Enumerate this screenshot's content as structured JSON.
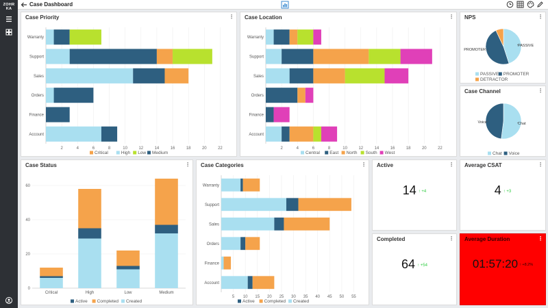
{
  "app": {
    "logo_line1": "ZOHR",
    "logo_line2": "KA",
    "title": "Case Dashboard"
  },
  "colors": {
    "critical": "#f5a34b",
    "high": "#a9dff0",
    "low": "#b8e12e",
    "medium": "#2e5f80",
    "central": "#a9dff0",
    "east": "#2e5f80",
    "north": "#f5a34b",
    "south": "#b8e12e",
    "west": "#e040b8",
    "active": "#2e5f80",
    "completed": "#f5a34b",
    "created": "#a9dff0",
    "passive": "#a9dff0",
    "promoter": "#2e5f80",
    "detractor": "#f5a34b",
    "chat": "#a9dff0",
    "voice": "#2e5f80",
    "alert": "#ff0000",
    "delta": "#2ecc40"
  },
  "cards": {
    "priority": {
      "title": "Case Priority"
    },
    "location": {
      "title": "Case Location"
    },
    "nps": {
      "title": "NPS"
    },
    "channel": {
      "title": "Case Channel"
    },
    "status": {
      "title": "Case Status"
    },
    "categories": {
      "title": "Case Categories"
    },
    "active": {
      "title": "Active",
      "value": "14",
      "delta": "+4"
    },
    "csat": {
      "title": "Average CSAT",
      "value": "4",
      "delta": "+3"
    },
    "completed": {
      "title": "Completed",
      "value": "64",
      "delta": "+54"
    },
    "duration": {
      "title": "Average Duration",
      "value": "01:57:20",
      "delta": "+8.2%"
    }
  },
  "chart_data": [
    {
      "id": "priority",
      "type": "bar",
      "orientation": "horizontal",
      "stacked": true,
      "categories": [
        "Warranty",
        "Support",
        "Sales",
        "Orders",
        "Finance",
        "Account"
      ],
      "series": [
        {
          "name": "High",
          "key": "high",
          "values": [
            1,
            3,
            11,
            1,
            0,
            7
          ]
        },
        {
          "name": "Medium",
          "key": "medium",
          "values": [
            2,
            11,
            4,
            5,
            3,
            2
          ]
        },
        {
          "name": "Critical",
          "key": "critical",
          "values": [
            0,
            2,
            3,
            0,
            0,
            0
          ]
        },
        {
          "name": "Low",
          "key": "low",
          "values": [
            4,
            5,
            0,
            0,
            0,
            0
          ]
        }
      ],
      "legend": [
        "Critical",
        "High",
        "Low",
        "Medium"
      ],
      "legend_keys": [
        "critical",
        "high",
        "low",
        "medium"
      ],
      "xticks": [
        2,
        4,
        6,
        8,
        10,
        12,
        14,
        16,
        18,
        20,
        22
      ],
      "xlim": [
        0,
        23
      ]
    },
    {
      "id": "location",
      "type": "bar",
      "orientation": "horizontal",
      "stacked": true,
      "categories": [
        "Warranty",
        "Support",
        "Sales",
        "Orders",
        "Finance",
        "Account"
      ],
      "series": [
        {
          "name": "Central",
          "key": "central",
          "values": [
            1,
            2,
            3,
            0,
            0,
            2
          ]
        },
        {
          "name": "East",
          "key": "east",
          "values": [
            2,
            4,
            3,
            4,
            1,
            1
          ]
        },
        {
          "name": "North",
          "key": "north",
          "values": [
            1,
            7,
            4,
            1,
            0,
            3
          ]
        },
        {
          "name": "South",
          "key": "south",
          "values": [
            2,
            4,
            5,
            0,
            0,
            1
          ]
        },
        {
          "name": "West",
          "key": "west",
          "values": [
            1,
            4,
            3,
            1,
            2,
            2
          ]
        }
      ],
      "legend": [
        "Central",
        "East",
        "North",
        "South",
        "West"
      ],
      "legend_keys": [
        "central",
        "east",
        "north",
        "south",
        "west"
      ],
      "xticks": [
        2,
        4,
        6,
        8,
        10,
        12,
        14,
        16,
        18,
        20,
        22
      ],
      "xlim": [
        0,
        23
      ]
    },
    {
      "id": "status",
      "type": "bar",
      "orientation": "vertical",
      "stacked": true,
      "categories": [
        "Critical",
        "High",
        "Low",
        "Medium"
      ],
      "series": [
        {
          "name": "Created",
          "key": "created",
          "values": [
            6,
            29,
            11,
            32
          ]
        },
        {
          "name": "Active",
          "key": "active",
          "values": [
            1,
            6,
            2,
            5
          ]
        },
        {
          "name": "Completed",
          "key": "completed",
          "values": [
            5,
            23,
            9,
            27
          ]
        }
      ],
      "legend": [
        "Active",
        "Completed",
        "Created"
      ],
      "legend_keys": [
        "active",
        "completed",
        "created"
      ],
      "yticks": [
        0,
        20,
        40,
        60
      ],
      "ylim": [
        0,
        66
      ]
    },
    {
      "id": "categories",
      "type": "bar",
      "orientation": "horizontal",
      "stacked": true,
      "categories": [
        "Warranty",
        "Support",
        "Sales",
        "Orders",
        "Finance",
        "Account"
      ],
      "series": [
        {
          "name": "Created",
          "key": "created",
          "values": [
            8,
            27,
            22,
            8,
            1,
            11
          ]
        },
        {
          "name": "Active",
          "key": "active",
          "values": [
            1,
            5,
            4,
            2,
            0,
            2
          ]
        },
        {
          "name": "Completed",
          "key": "completed",
          "values": [
            7,
            22,
            19,
            6,
            3,
            9
          ]
        }
      ],
      "legend": [
        "Active",
        "Completed",
        "Created"
      ],
      "legend_keys": [
        "active",
        "completed",
        "created"
      ],
      "xticks": [
        5,
        10,
        15,
        20,
        25,
        30,
        35,
        40,
        45,
        50,
        55
      ],
      "xlim": [
        0,
        58
      ]
    },
    {
      "id": "nps",
      "type": "pie",
      "slices": [
        {
          "name": "PASSIVE",
          "key": "passive",
          "value": 45
        },
        {
          "name": "PROMOTER",
          "key": "promoter",
          "value": 48
        },
        {
          "name": "DETRACTOR",
          "key": "detractor",
          "value": 7
        }
      ],
      "legend": [
        "PASSIVE",
        "PROMOTER",
        "DETRACTOR"
      ],
      "legend_keys": [
        "passive",
        "promoter",
        "detractor"
      ]
    },
    {
      "id": "channel",
      "type": "pie",
      "slices": [
        {
          "name": "Chat",
          "key": "chat",
          "value": 52
        },
        {
          "name": "Voice",
          "key": "voice",
          "value": 48
        }
      ],
      "legend": [
        "Chat",
        "Voice"
      ],
      "legend_keys": [
        "chat",
        "voice"
      ]
    }
  ]
}
